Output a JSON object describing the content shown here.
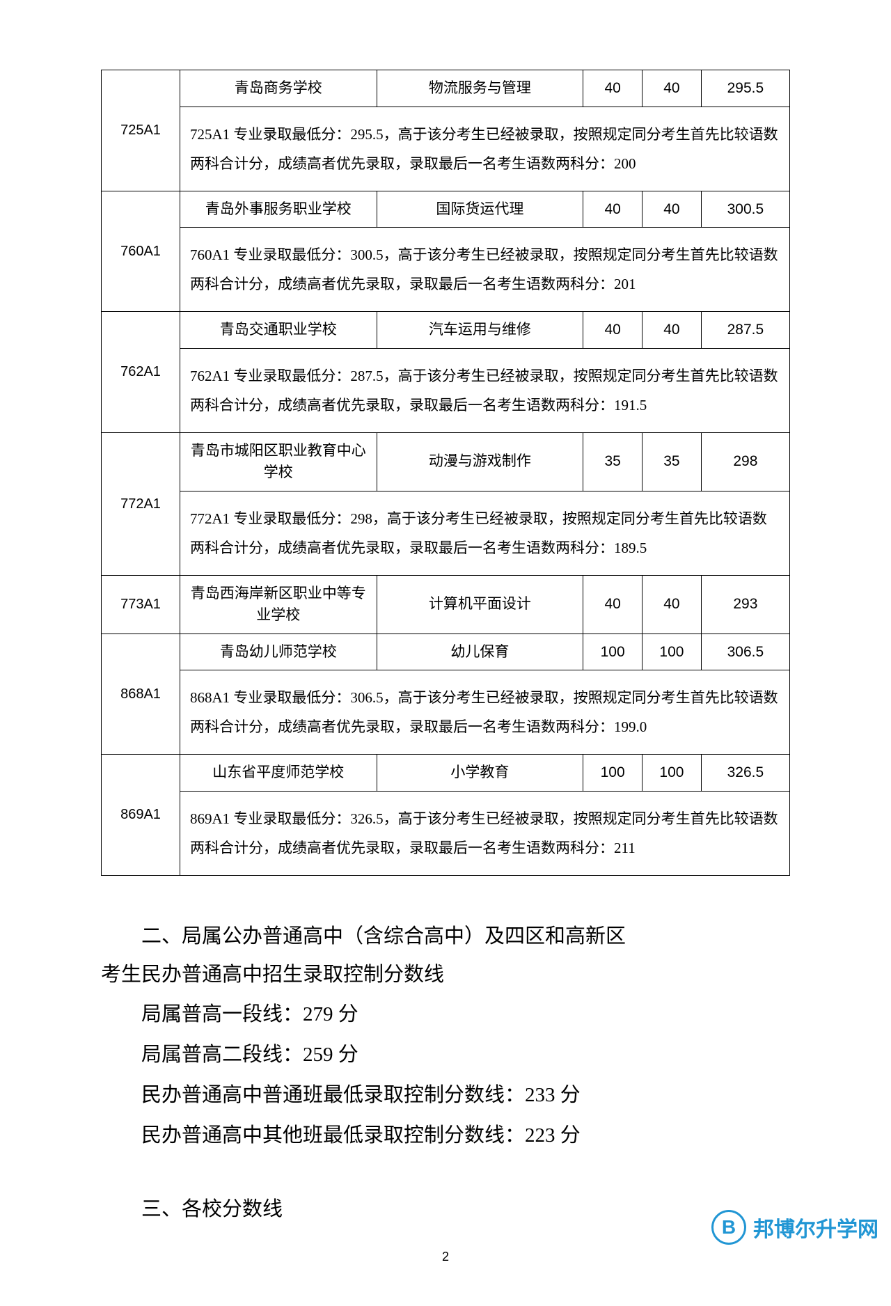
{
  "table": {
    "colwidths": {
      "code": 80,
      "school": 200,
      "major": 210,
      "num1": 60,
      "num2": 60,
      "score": 90
    },
    "rows": [
      {
        "code": "725A1",
        "school": "青岛商务学校",
        "major": "物流服务与管理",
        "n1": "40",
        "n2": "40",
        "score": "295.5",
        "note": "725A1 专业录取最低分：295.5，高于该分考生已经被录取，按照规定同分考生首先比较语数两科合计分，成绩高者优先录取，录取最后一名考生语数两科分：200"
      },
      {
        "code": "760A1",
        "school": "青岛外事服务职业学校",
        "major": "国际货运代理",
        "n1": "40",
        "n2": "40",
        "score": "300.5",
        "note": "760A1 专业录取最低分：300.5，高于该分考生已经被录取，按照规定同分考生首先比较语数两科合计分，成绩高者优先录取，录取最后一名考生语数两科分：201"
      },
      {
        "code": "762A1",
        "school": "青岛交通职业学校",
        "major": "汽车运用与维修",
        "n1": "40",
        "n2": "40",
        "score": "287.5",
        "note": "762A1 专业录取最低分：287.5，高于该分考生已经被录取，按照规定同分考生首先比较语数两科合计分，成绩高者优先录取，录取最后一名考生语数两科分：191.5"
      },
      {
        "code": "772A1",
        "school": "青岛市城阳区职业教育中心学校",
        "major": "动漫与游戏制作",
        "n1": "35",
        "n2": "35",
        "score": "298",
        "note": "772A1 专业录取最低分：298，高于该分考生已经被录取，按照规定同分考生首先比较语数两科合计分，成绩高者优先录取，录取最后一名考生语数两科分：189.5"
      },
      {
        "code": "773A1",
        "school": "青岛西海岸新区职业中等专业学校",
        "major": "计算机平面设计",
        "n1": "40",
        "n2": "40",
        "score": "293",
        "note": null
      },
      {
        "code": "868A1",
        "school": "青岛幼儿师范学校",
        "major": "幼儿保育",
        "n1": "100",
        "n2": "100",
        "score": "306.5",
        "note": "868A1 专业录取最低分：306.5，高于该分考生已经被录取，按照规定同分考生首先比较语数两科合计分，成绩高者优先录取，录取最后一名考生语数两科分：199.0"
      },
      {
        "code": "869A1",
        "school": "山东省平度师范学校",
        "major": "小学教育",
        "n1": "100",
        "n2": "100",
        "score": "326.5",
        "note": "869A1 专业录取最低分：326.5，高于该分考生已经被录取，按照规定同分考生首先比较语数两科合计分，成绩高者优先录取，录取最后一名考生语数两科分：211"
      }
    ]
  },
  "section2": {
    "heading_line1": "二、局属公办普通高中（含综合高中）及四区和高新区",
    "heading_line2": "考生民办普通高中招生录取控制分数线",
    "lines": [
      "局属普高一段线：279 分",
      "局属普高二段线：259 分",
      "民办普通高中普通班最低录取控制分数线：233 分",
      "民办普通高中其他班最低录取控制分数线：223 分"
    ]
  },
  "section3": {
    "heading": "三、各校分数线"
  },
  "pageNumber": "2",
  "watermark": {
    "letter": "B",
    "text": "邦博尔升学网"
  },
  "colors": {
    "text": "#000000",
    "border": "#000000",
    "watermark": "#2196d4",
    "background": "#ffffff"
  },
  "fonts": {
    "table": "SimSun",
    "heading": "SimHei",
    "body": "FangSong",
    "numbers": "Arial"
  }
}
